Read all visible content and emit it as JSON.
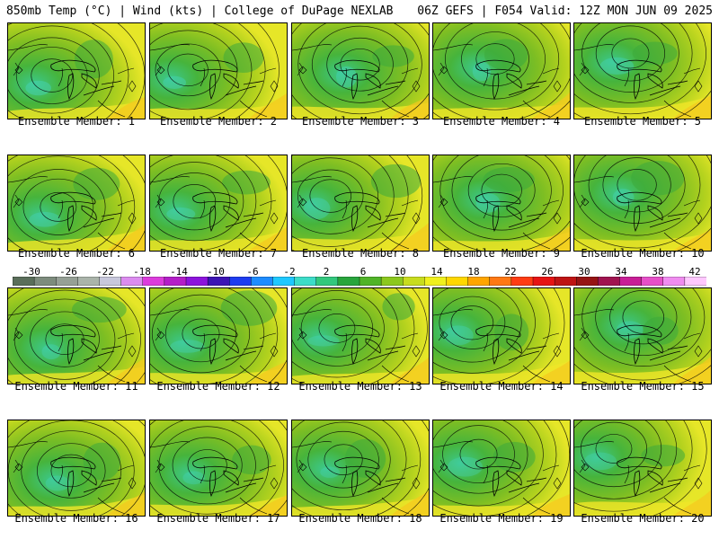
{
  "header": {
    "left_title": "850mb Temp (°C) | Wind (kts) | College of DuPage NEXLAB",
    "right_title": "06Z GEFS | F054 Valid: 12Z MON JUN 09 2025"
  },
  "panels": [
    {
      "label": "Ensemble Member: 1"
    },
    {
      "label": "Ensemble Member: 2"
    },
    {
      "label": "Ensemble Member: 3"
    },
    {
      "label": "Ensemble Member: 4"
    },
    {
      "label": "Ensemble Member: 5"
    },
    {
      "label": "Ensemble Member: 6"
    },
    {
      "label": "Ensemble Member: 7"
    },
    {
      "label": "Ensemble Member: 8"
    },
    {
      "label": "Ensemble Member: 9"
    },
    {
      "label": "Ensemble Member: 10"
    },
    {
      "label": "Ensemble Member: 11"
    },
    {
      "label": "Ensemble Member: 12"
    },
    {
      "label": "Ensemble Member: 13"
    },
    {
      "label": "Ensemble Member: 14"
    },
    {
      "label": "Ensemble Member: 15"
    },
    {
      "label": "Ensemble Member: 16"
    },
    {
      "label": "Ensemble Member: 17"
    },
    {
      "label": "Ensemble Member: 18"
    },
    {
      "label": "Ensemble Member: 19"
    },
    {
      "label": "Ensemble Member: 20"
    }
  ],
  "colorbar": {
    "ticks": [
      "-30",
      "-26",
      "-22",
      "-18",
      "-14",
      "-10",
      "-6",
      "-2",
      "2",
      "6",
      "10",
      "14",
      "18",
      "22",
      "26",
      "30",
      "34",
      "38",
      "42"
    ],
    "colors": [
      "#5a6e5a",
      "#7d8c7d",
      "#96a096",
      "#aab4aa",
      "#c8c8dc",
      "#dc8cf0",
      "#dc3cdc",
      "#b41ec8",
      "#8c14dc",
      "#3c14b4",
      "#1e3cf0",
      "#1e8cff",
      "#1ec8ff",
      "#3cdcc8",
      "#32c87d",
      "#28a53c",
      "#50b428",
      "#8cc81e",
      "#c8dc1e",
      "#f0f01e",
      "#ffd700",
      "#ffa500",
      "#ff7814",
      "#ff3c14",
      "#e61414",
      "#be1414",
      "#961414",
      "#a01450",
      "#c81e96",
      "#e650c8",
      "#f08cf0",
      "#ffc8ff"
    ]
  }
}
